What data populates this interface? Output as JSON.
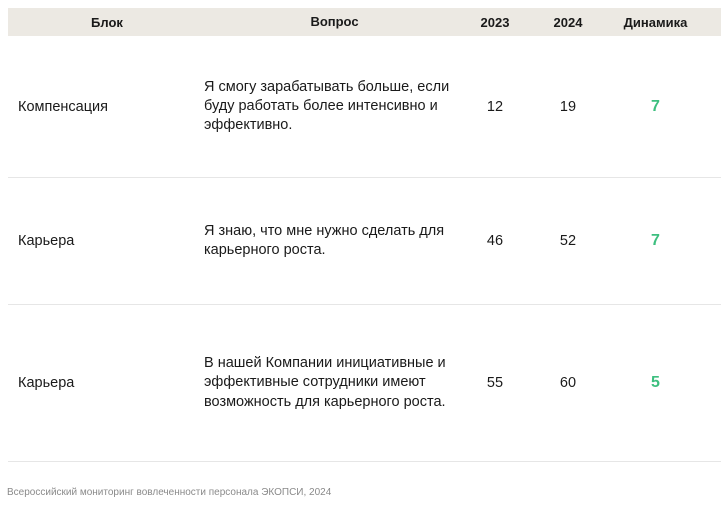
{
  "table": {
    "headers": {
      "block": "Блок",
      "question": "Вопрос",
      "y2023": "2023",
      "y2024": "2024",
      "dynamics": "Динамика"
    },
    "rows": [
      {
        "block": "Компенсация",
        "question": "Я смогу зарабатывать больше, если буду работать более интенсивно и эффективно.",
        "y2023": "12",
        "y2024": "19",
        "dynamics": "7"
      },
      {
        "block": "Карьера",
        "question": "Я знаю, что мне нужно сделать для карьерного роста.",
        "y2023": "46",
        "y2024": "52",
        "dynamics": "7"
      },
      {
        "block": "Карьера",
        "question": "В нашей Компании инициативные и эффективные сотрудники имеют возможность для карьерного роста.",
        "y2023": "55",
        "y2024": "60",
        "dynamics": "5"
      }
    ]
  },
  "footer": {
    "source": "Всероссийский мониторинг вовлеченности персонала ЭКОПСИ, 2024"
  },
  "colors": {
    "header_bg": "#ece9e3",
    "positive_dynamics": "#3dbf7f",
    "divider": "#e6e6e6"
  }
}
